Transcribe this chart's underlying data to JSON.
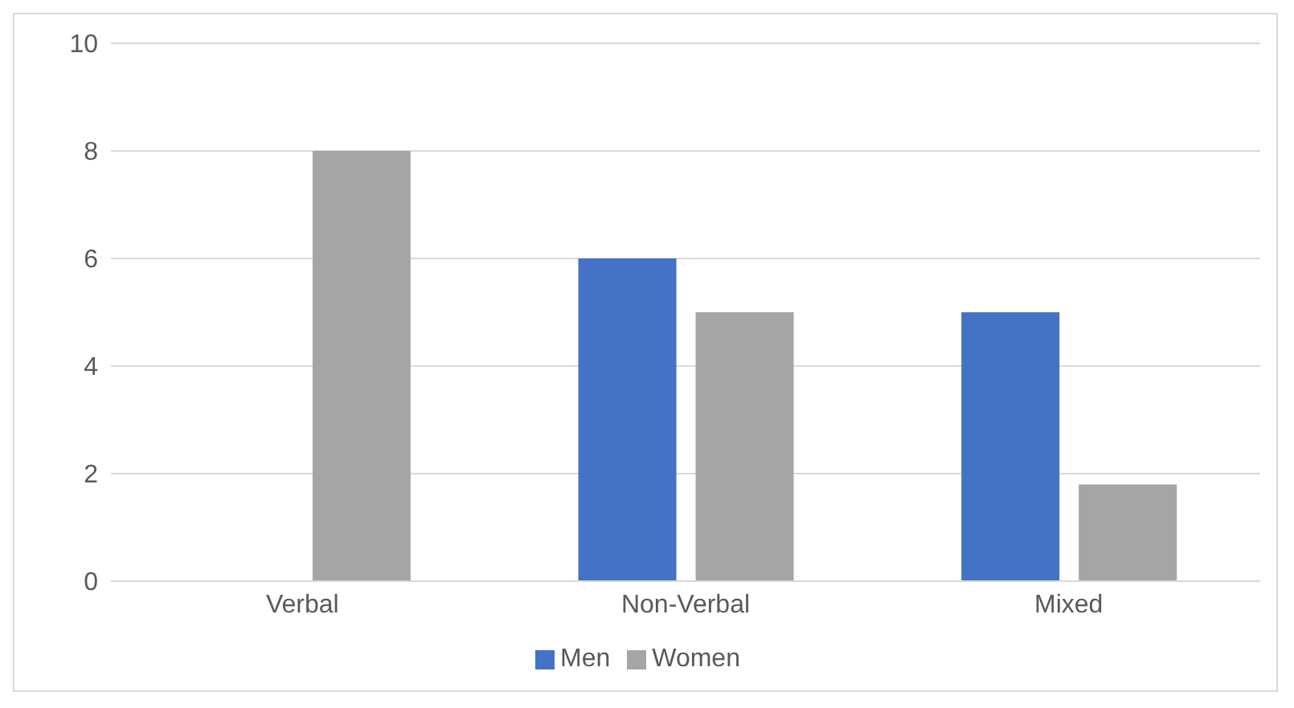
{
  "chart_data": {
    "type": "bar",
    "categories": [
      "Verbal",
      "Non-Verbal",
      "Mixed"
    ],
    "series": [
      {
        "name": "Men",
        "color": "#4472c4",
        "values": [
          0,
          6,
          5
        ]
      },
      {
        "name": "Women",
        "color": "#a5a5a5",
        "values": [
          8,
          5,
          1.8
        ]
      }
    ],
    "ylim": [
      0,
      10
    ],
    "yticks": [
      0,
      2,
      4,
      6,
      8,
      10
    ],
    "grid": "y",
    "legend": "bottom"
  }
}
